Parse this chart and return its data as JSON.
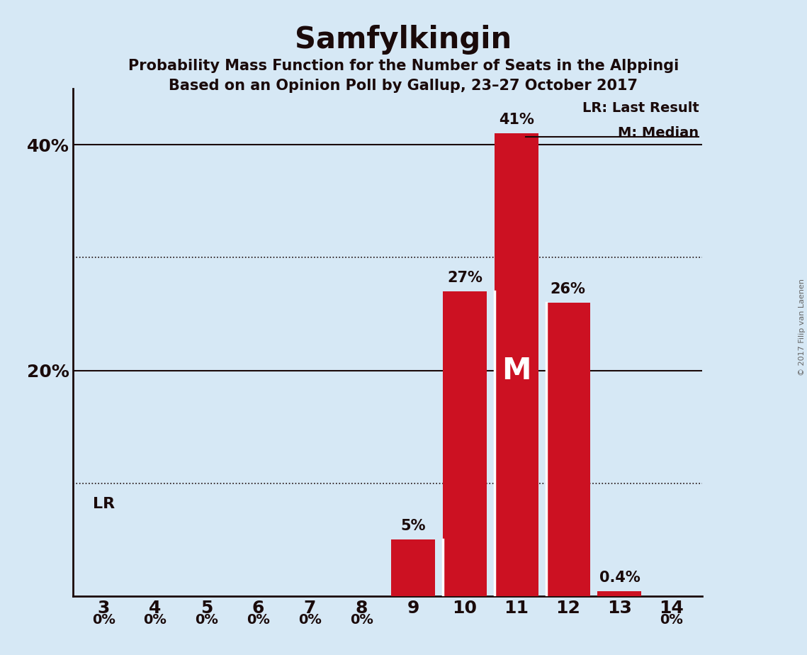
{
  "title": "Samfylkingin",
  "subtitle1": "Probability Mass Function for the Number of Seats in the Alþpingi",
  "subtitle2": "Based on an Opinion Poll by Gallup, 23–27 October 2017",
  "categories": [
    3,
    4,
    5,
    6,
    7,
    8,
    9,
    10,
    11,
    12,
    13,
    14
  ],
  "values": [
    0,
    0,
    0,
    0,
    0,
    0,
    5,
    27,
    41,
    26,
    0.4,
    0
  ],
  "bar_color": "#cc1122",
  "bg_color": "#d6e8f5",
  "text_color": "#1a0a0a",
  "bar_labels": [
    "0%",
    "0%",
    "0%",
    "0%",
    "0%",
    "0%",
    "5%",
    "27%",
    "41%",
    "26%",
    "0.4%",
    "0%"
  ],
  "lr_label": "LR",
  "median_label": "M",
  "legend_lr": "LR: Last Result",
  "legend_m": "M: Median",
  "ylim": [
    0,
    45
  ],
  "solid_gridlines": [
    20,
    40
  ],
  "dotted_gridlines": [
    10,
    30
  ],
  "watermark": "© 2017 Filip van Laenen"
}
